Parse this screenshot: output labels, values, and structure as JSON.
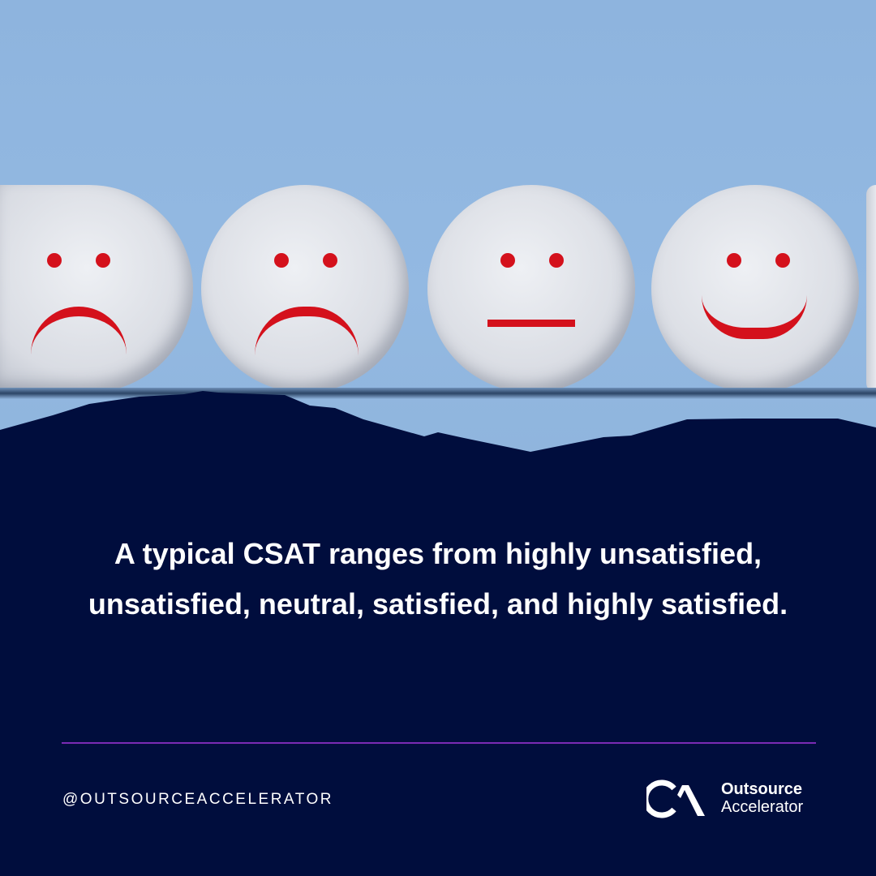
{
  "image": {
    "faces": [
      "highly-unsatisfied-face",
      "unsatisfied-face",
      "neutral-face",
      "satisfied-face"
    ],
    "accent_color": "#d4111c",
    "background_color": "#000d3d"
  },
  "caption": "A typical CSAT ranges from highly unsatisfied, unsatisfied, neutral, satisfied, and highly satisfied.",
  "footer": {
    "handle": "@OUTSOURCEACCELERATOR",
    "brand_line1": "Outsource",
    "brand_line2": "Accelerator",
    "divider_color": "#7a2bb5"
  }
}
